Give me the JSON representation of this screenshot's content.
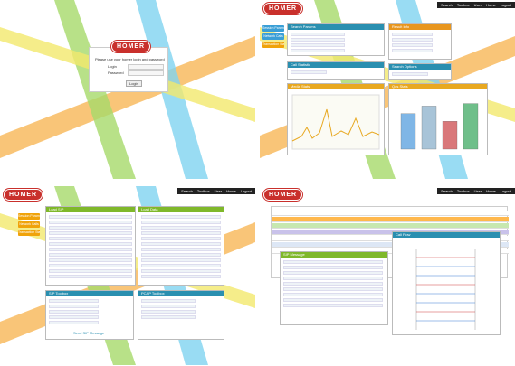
{
  "login": {
    "logo": "HOMER",
    "prompt": "Please use your homer login and password",
    "fields": [
      "Login",
      "Password"
    ],
    "button": "Login"
  },
  "nav": [
    "Search",
    "Toolbox",
    "User",
    "Home",
    "Logout"
  ],
  "search_page": {
    "logo": "HOMER",
    "menu": [
      "Session Params",
      "Network Calls",
      "Transaction Stats"
    ],
    "panels": [
      "Search Params",
      "Result Info",
      "Call Statistic",
      "Search Options",
      "Media Stats",
      "Qos Stats"
    ],
    "bars": [
      70,
      85,
      55,
      90
    ],
    "bar_colors": [
      "#7fb6e6",
      "#a8c4d8",
      "#d9787a",
      "#6fbf8a"
    ]
  },
  "toolbox_page": {
    "logo": "HOMER",
    "menu": [
      "Session Params",
      "Network Calls",
      "Transaction Stats"
    ],
    "panels": [
      "Load SIP",
      "Load Data",
      "SIP Toolbox",
      "PCAP Toolbox"
    ],
    "button": "Send SIP Message"
  },
  "result_page": {
    "logo": "HOMER",
    "panels": [
      "Call Flow",
      "SIP Message"
    ]
  }
}
